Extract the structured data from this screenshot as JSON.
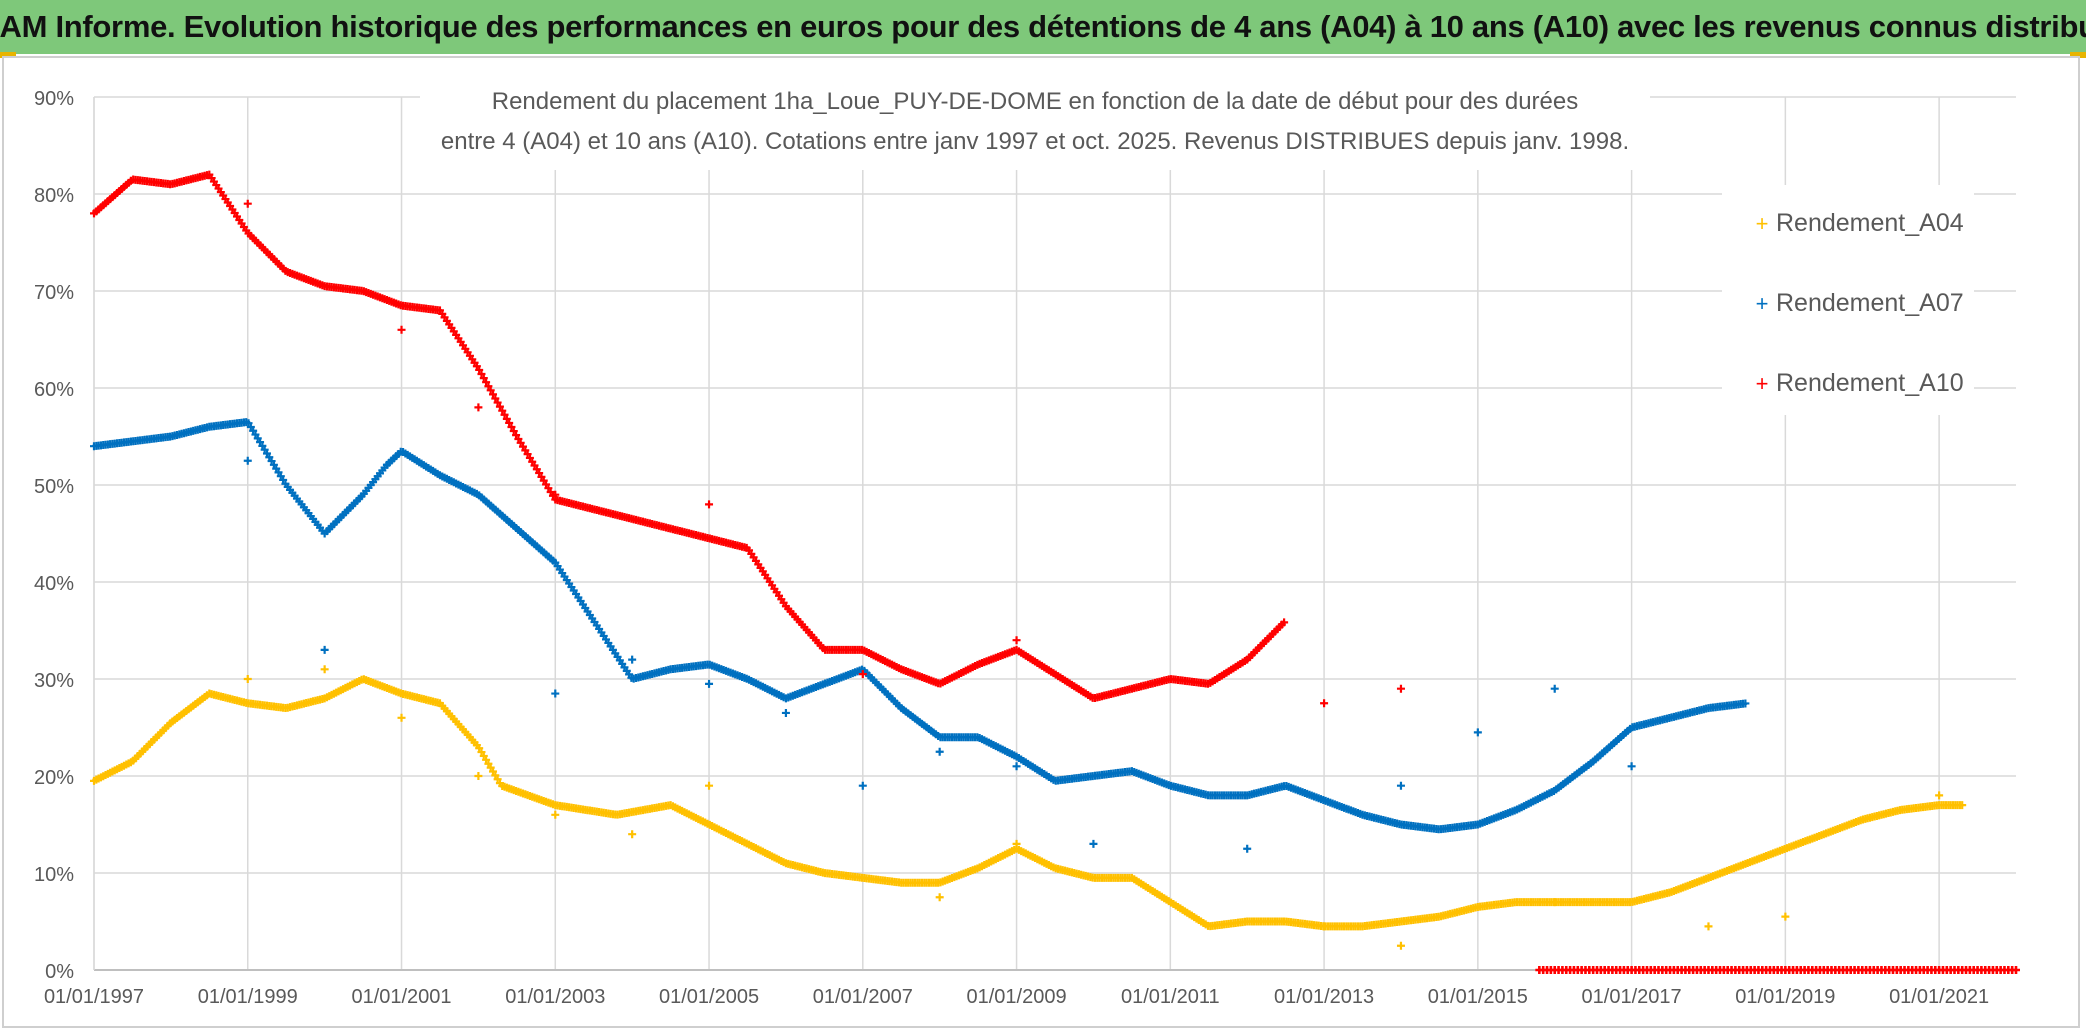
{
  "header": {
    "title": "ADAM Informe. Evolution historique des performances en euros pour des détentions de 4 ans (A04) à 10 ans (A10) avec les revenus connus distribués"
  },
  "chart_data": {
    "type": "scatter",
    "title_line1": "Rendement du placement 1ha_Loue_PUY-DE-DOME en fonction de la date de début pour des durées",
    "title_line2": "entre 4 (A04) et 10 ans (A10). Cotations entre janv 1997 et oct. 2025.  Revenus DISTRIBUES depuis janv. 1998.",
    "x_unit": "years since 01/01/1997",
    "xlim": [
      0,
      25
    ],
    "ylim": [
      0,
      90
    ],
    "x_ticks": [
      0,
      2,
      4,
      6,
      8,
      10,
      12,
      14,
      16,
      18,
      20,
      22,
      24
    ],
    "x_tick_labels": [
      "01/01/1997",
      "01/01/1999",
      "01/01/2001",
      "01/01/2003",
      "01/01/2005",
      "01/01/2007",
      "01/01/2009",
      "01/01/2011",
      "01/01/2013",
      "01/01/2015",
      "01/01/2017",
      "01/01/2019",
      "01/01/2021"
    ],
    "y_ticks": [
      0,
      10,
      20,
      30,
      40,
      50,
      60,
      70,
      80,
      90
    ],
    "y_tick_labels": [
      "0%",
      "10%",
      "20%",
      "30%",
      "40%",
      "50%",
      "60%",
      "70%",
      "80%",
      "90%"
    ],
    "grid": true,
    "legend_position": "right",
    "series": [
      {
        "name": "Rendement_A04",
        "color": "#ffc000",
        "x": [
          0,
          0.5,
          1.0,
          1.5,
          2.0,
          2.5,
          3.0,
          3.5,
          4.0,
          4.5,
          5.0,
          5.3,
          6.0,
          6.8,
          7.5,
          8.0,
          8.5,
          9.0,
          9.5,
          10.0,
          10.5,
          11.0,
          11.5,
          12.0,
          12.5,
          13.0,
          13.5,
          14.0,
          14.5,
          15.0,
          15.5,
          16.0,
          16.5,
          17.0,
          17.5,
          18.0,
          18.5,
          19.0,
          19.5,
          20.0,
          20.5,
          21.0,
          21.5,
          22.0,
          22.5,
          23.0,
          23.5,
          24.0,
          24.3
        ],
        "y": [
          19.5,
          21.5,
          25.5,
          28.5,
          27.5,
          27.0,
          28.0,
          30.0,
          28.5,
          27.5,
          23.0,
          19.0,
          17.0,
          16.0,
          17.0,
          15.0,
          13.0,
          11.0,
          10.0,
          9.5,
          9.0,
          9.0,
          10.5,
          12.5,
          10.5,
          9.5,
          9.5,
          7.0,
          4.5,
          5.0,
          5.0,
          4.5,
          4.5,
          5.0,
          5.5,
          6.5,
          7.0,
          7.0,
          7.0,
          7.0,
          8.0,
          9.5,
          11.0,
          12.5,
          14.0,
          15.5,
          16.5,
          17.0,
          17.0
        ],
        "outliers_x": [
          2.0,
          3.0,
          4.0,
          5.0,
          6.0,
          7.0,
          8.0,
          11.0,
          12.0,
          16.0,
          17.0,
          19.0,
          21.0,
          22.0,
          24.0
        ],
        "outliers_y": [
          30.0,
          31.0,
          26.0,
          20.0,
          16.0,
          14.0,
          19.0,
          7.5,
          13.0,
          4.5,
          2.5,
          7.0,
          4.5,
          5.5,
          18.0
        ]
      },
      {
        "name": "Rendement_A07",
        "color": "#0070c0",
        "x": [
          0,
          0.5,
          1.0,
          1.5,
          2.0,
          2.5,
          3.0,
          3.5,
          3.8,
          4.0,
          4.5,
          5.0,
          5.5,
          6.0,
          6.5,
          7.0,
          7.5,
          8.0,
          8.5,
          9.0,
          9.5,
          10.0,
          10.5,
          11.0,
          11.5,
          12.0,
          12.5,
          13.0,
          13.5,
          14.0,
          14.5,
          15.0,
          15.5,
          16.0,
          16.5,
          17.0,
          17.5,
          18.0,
          18.5,
          19.0,
          19.5,
          20.0,
          20.5,
          21.0,
          21.5
        ],
        "y": [
          54.0,
          54.5,
          55.0,
          56.0,
          56.5,
          50.0,
          45.0,
          49.0,
          52.0,
          53.5,
          51.0,
          49.0,
          45.5,
          42.0,
          36.0,
          30.0,
          31.0,
          31.5,
          30.0,
          28.0,
          29.5,
          31.0,
          27.0,
          24.0,
          24.0,
          22.0,
          19.5,
          20.0,
          20.5,
          19.0,
          18.0,
          18.0,
          19.0,
          17.5,
          16.0,
          15.0,
          14.5,
          15.0,
          16.5,
          18.5,
          21.5,
          25.0,
          26.0,
          27.0,
          27.5
        ],
        "outliers_x": [
          2.0,
          3.0,
          6.0,
          7.0,
          8.0,
          9.0,
          10.0,
          11.0,
          12.0,
          13.0,
          15.0,
          17.0,
          18.0,
          19.0,
          20.0
        ],
        "outliers_y": [
          52.5,
          33.0,
          28.5,
          32.0,
          29.5,
          26.5,
          19.0,
          22.5,
          21.0,
          13.0,
          12.5,
          19.0,
          24.5,
          29.0,
          21.0
        ]
      },
      {
        "name": "Rendement_A10",
        "color": "#ff0000",
        "x": [
          0,
          0.5,
          1.0,
          1.5,
          2.0,
          2.5,
          3.0,
          3.5,
          4.0,
          4.5,
          5.0,
          5.5,
          6.0,
          6.5,
          7.0,
          7.5,
          8.0,
          8.5,
          9.0,
          9.5,
          10.0,
          10.5,
          11.0,
          11.5,
          12.0,
          12.5,
          13.0,
          13.5,
          14.0,
          14.5,
          15.0,
          15.5
        ],
        "y": [
          78.0,
          81.5,
          81.0,
          82.0,
          76.0,
          72.0,
          70.5,
          70.0,
          68.5,
          68.0,
          62.0,
          55.0,
          48.5,
          47.5,
          46.5,
          45.5,
          44.5,
          43.5,
          37.5,
          33.0,
          33.0,
          31.0,
          29.5,
          31.5,
          33.0,
          30.5,
          28.0,
          29.0,
          30.0,
          29.5,
          32.0,
          36.0
        ],
        "outliers_x": [
          2.0,
          4.0,
          5.0,
          6.0,
          8.0,
          10.0,
          12.0,
          16.0,
          17.0
        ],
        "outliers_y": [
          79.0,
          66.0,
          58.0,
          49.0,
          48.0,
          30.5,
          34.0,
          27.5,
          29.0
        ],
        "zero_from_x": 18.8,
        "zero_to_x": 25.0
      }
    ]
  }
}
